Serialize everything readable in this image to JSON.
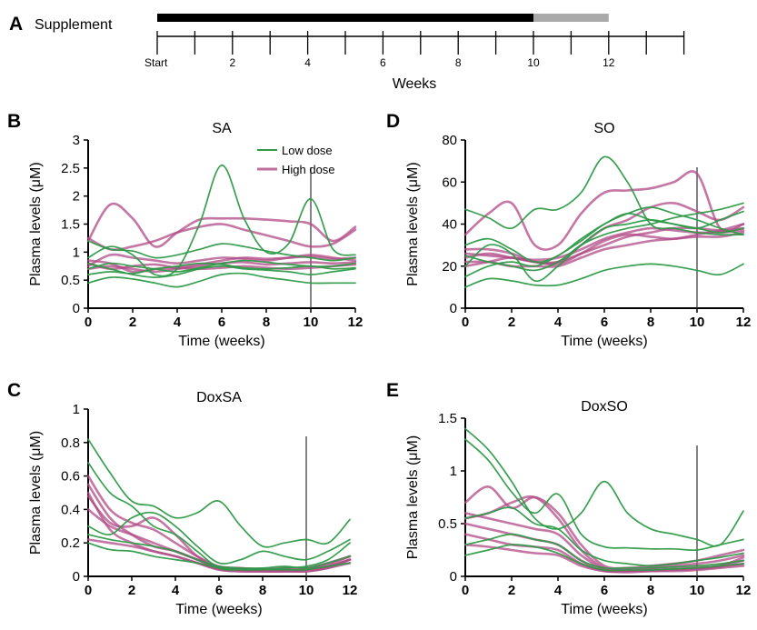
{
  "figure": {
    "colors": {
      "low_dose": "#2e9a48",
      "high_dose": "#b04a86",
      "supplement_on": "#000000",
      "supplement_off": "#aaaaaa",
      "axis": "#000000"
    },
    "timeline": {
      "letter": "A",
      "label": "Supplement",
      "on_weeks": [
        0,
        10
      ],
      "off_weeks": [
        10,
        12
      ],
      "tick_weeks": [
        0,
        1,
        2,
        3,
        4,
        5,
        6,
        7,
        8,
        9,
        10,
        11,
        12,
        13,
        14
      ],
      "tick_labels": [
        {
          "week": 0,
          "text": "Start"
        },
        {
          "week": 2,
          "text": "2"
        },
        {
          "week": 4,
          "text": "4"
        },
        {
          "week": 6,
          "text": "6"
        },
        {
          "week": 8,
          "text": "8"
        },
        {
          "week": 10,
          "text": "10"
        },
        {
          "week": 12,
          "text": "12"
        }
      ],
      "xlabel": "Weeks"
    },
    "legend": {
      "low_dose": "Low dose",
      "high_dose": "High dose"
    }
  },
  "chart_data": [
    {
      "id": "B",
      "type": "line",
      "title": "SA",
      "xlabel": "Time (weeks)",
      "ylabel": "Plasma levels (μM)",
      "xlim": [
        0,
        12
      ],
      "ylim": [
        0,
        3
      ],
      "xticks": [
        0,
        2,
        4,
        6,
        8,
        10,
        12
      ],
      "yticks": [
        0,
        0.5,
        1,
        1.5,
        2,
        2.5,
        3
      ],
      "ytick_labels": [
        "0",
        "0.5",
        "1",
        "1.5",
        "2",
        "2.5",
        "3"
      ],
      "vline": 10,
      "legend": true,
      "x": [
        0,
        1,
        2,
        3,
        4,
        5,
        6,
        7,
        8,
        9,
        10,
        11,
        12
      ],
      "low_dose": [
        [
          0.45,
          0.55,
          0.52,
          0.45,
          0.38,
          0.48,
          0.6,
          0.62,
          0.55,
          0.5,
          0.45,
          0.45,
          0.45
        ],
        [
          0.9,
          1.1,
          0.95,
          0.6,
          0.7,
          1.5,
          2.55,
          1.6,
          1.0,
          1.15,
          1.95,
          1.05,
          0.95
        ],
        [
          1.2,
          1.05,
          1.02,
          0.9,
          0.95,
          1.05,
          1.15,
          1.1,
          1.02,
          0.95,
          0.9,
          0.85,
          0.9
        ],
        [
          0.7,
          0.8,
          0.75,
          0.7,
          0.65,
          0.72,
          0.8,
          0.85,
          0.82,
          0.78,
          0.75,
          0.75,
          0.8
        ],
        [
          0.8,
          0.7,
          0.6,
          0.55,
          0.6,
          0.7,
          0.75,
          0.7,
          0.68,
          0.65,
          0.6,
          0.65,
          0.7
        ],
        [
          0.6,
          0.65,
          0.62,
          0.7,
          0.75,
          0.8,
          0.78,
          0.72,
          0.7,
          0.72,
          0.75,
          0.7,
          0.72
        ]
      ],
      "high_dose": [
        [
          1.2,
          1.85,
          1.6,
          1.1,
          1.35,
          1.58,
          1.6,
          1.6,
          1.58,
          1.55,
          1.5,
          1.2,
          1.45
        ],
        [
          1.25,
          1.05,
          1.1,
          1.2,
          1.35,
          1.45,
          1.5,
          1.4,
          1.3,
          1.2,
          1.1,
          1.15,
          1.4
        ],
        [
          0.75,
          0.95,
          0.9,
          0.85,
          0.8,
          0.85,
          0.9,
          0.88,
          0.85,
          0.9,
          0.95,
          0.9,
          0.85
        ],
        [
          0.7,
          0.75,
          0.7,
          0.65,
          0.7,
          0.75,
          0.8,
          0.82,
          0.78,
          0.8,
          0.82,
          0.8,
          0.82
        ],
        [
          0.85,
          0.8,
          0.65,
          0.7,
          0.72,
          0.78,
          0.85,
          0.9,
          0.88,
          0.9,
          0.92,
          0.88,
          0.9
        ],
        [
          0.8,
          0.7,
          0.75,
          0.78,
          0.72,
          0.7,
          0.72,
          0.75,
          0.72,
          0.7,
          0.72,
          0.75,
          0.78
        ]
      ]
    },
    {
      "id": "C",
      "type": "line",
      "title": "DoxSA",
      "xlabel": "Time (weeks)",
      "ylabel": "Plasma levels (μM)",
      "xlim": [
        0,
        12
      ],
      "ylim": [
        0,
        1
      ],
      "xticks": [
        0,
        2,
        4,
        6,
        8,
        10,
        12
      ],
      "yticks": [
        0,
        0.2,
        0.4,
        0.6,
        0.8,
        1
      ],
      "ytick_labels": [
        "0",
        "0.2",
        "0.4",
        "0.6",
        "0.8",
        "1"
      ],
      "vline": 10,
      "legend": false,
      "x": [
        0,
        1,
        2,
        3,
        4,
        5,
        6,
        7,
        8,
        9,
        10,
        11,
        12
      ],
      "low_dose": [
        [
          0.82,
          0.62,
          0.45,
          0.42,
          0.35,
          0.38,
          0.45,
          0.3,
          0.18,
          0.2,
          0.22,
          0.2,
          0.34
        ],
        [
          0.68,
          0.5,
          0.42,
          0.3,
          0.25,
          0.15,
          0.05,
          0.04,
          0.04,
          0.05,
          0.06,
          0.1,
          0.2
        ],
        [
          0.3,
          0.25,
          0.35,
          0.38,
          0.3,
          0.18,
          0.08,
          0.1,
          0.15,
          0.12,
          0.1,
          0.15,
          0.22
        ],
        [
          0.2,
          0.16,
          0.15,
          0.12,
          0.1,
          0.08,
          0.05,
          0.04,
          0.04,
          0.04,
          0.04,
          0.06,
          0.08
        ],
        [
          0.25,
          0.22,
          0.2,
          0.18,
          0.15,
          0.1,
          0.06,
          0.05,
          0.05,
          0.06,
          0.05,
          0.08,
          0.12
        ]
      ],
      "high_dose": [
        [
          0.6,
          0.4,
          0.32,
          0.28,
          0.2,
          0.12,
          0.06,
          0.05,
          0.04,
          0.04,
          0.04,
          0.06,
          0.1
        ],
        [
          0.55,
          0.35,
          0.25,
          0.18,
          0.15,
          0.1,
          0.05,
          0.04,
          0.04,
          0.05,
          0.05,
          0.08,
          0.12
        ],
        [
          0.5,
          0.28,
          0.2,
          0.15,
          0.12,
          0.08,
          0.04,
          0.03,
          0.03,
          0.03,
          0.04,
          0.06,
          0.1
        ],
        [
          0.22,
          0.2,
          0.18,
          0.15,
          0.12,
          0.08,
          0.04,
          0.03,
          0.03,
          0.03,
          0.03,
          0.05,
          0.08
        ],
        [
          0.48,
          0.32,
          0.3,
          0.35,
          0.25,
          0.12,
          0.05,
          0.04,
          0.04,
          0.04,
          0.04,
          0.07,
          0.12
        ],
        [
          0.4,
          0.3,
          0.25,
          0.2,
          0.15,
          0.1,
          0.05,
          0.04,
          0.03,
          0.03,
          0.03,
          0.05,
          0.1
        ]
      ]
    },
    {
      "id": "D",
      "type": "line",
      "title": "SO",
      "xlabel": "Time (weeks)",
      "ylabel": "Plasma levels (μM)",
      "xlim": [
        0,
        12
      ],
      "ylim": [
        0,
        80
      ],
      "xticks": [
        0,
        2,
        4,
        6,
        8,
        10,
        12
      ],
      "yticks": [
        0,
        20,
        40,
        60,
        80
      ],
      "ytick_labels": [
        "0",
        "20",
        "40",
        "60",
        "80"
      ],
      "vline": 10,
      "legend": false,
      "x": [
        0,
        1,
        2,
        3,
        4,
        5,
        6,
        7,
        8,
        9,
        10,
        11,
        12
      ],
      "low_dose": [
        [
          47,
          43,
          38,
          47,
          47,
          55,
          72,
          60,
          40,
          38,
          36,
          35,
          35
        ],
        [
          10,
          14,
          13,
          11,
          11,
          14,
          18,
          20,
          21,
          20,
          18,
          16,
          21
        ],
        [
          20,
          30,
          26,
          13,
          20,
          30,
          38,
          40,
          42,
          40,
          38,
          36,
          38
        ],
        [
          30,
          33,
          28,
          22,
          25,
          33,
          40,
          45,
          42,
          40,
          38,
          42,
          46
        ],
        [
          25,
          22,
          20,
          18,
          22,
          30,
          35,
          38,
          40,
          43,
          45,
          47,
          50
        ],
        [
          15,
          20,
          22,
          20,
          25,
          32,
          40,
          45,
          48,
          45,
          42,
          38,
          35
        ]
      ],
      "high_dose": [
        [
          35,
          45,
          50,
          30,
          30,
          45,
          55,
          56,
          57,
          60,
          64,
          38,
          40
        ],
        [
          28,
          28,
          26,
          22,
          22,
          30,
          38,
          42,
          48,
          50,
          46,
          42,
          48
        ],
        [
          24,
          26,
          24,
          22,
          22,
          26,
          30,
          34,
          36,
          38,
          38,
          37,
          38
        ],
        [
          22,
          22,
          20,
          20,
          20,
          24,
          28,
          30,
          32,
          33,
          34,
          34,
          36
        ],
        [
          26,
          25,
          24,
          23,
          24,
          28,
          33,
          36,
          38,
          37,
          36,
          36,
          37
        ],
        [
          20,
          22,
          24,
          22,
          21,
          26,
          32,
          35,
          34,
          33,
          35,
          37,
          40
        ]
      ]
    },
    {
      "id": "E",
      "type": "line",
      "title": "DoxSO",
      "xlabel": "Time (weeks)",
      "ylabel": "Plasma levels (μM)",
      "xlim": [
        0,
        12
      ],
      "ylim": [
        0,
        1.5
      ],
      "xticks": [
        0,
        2,
        4,
        6,
        8,
        10,
        12
      ],
      "yticks": [
        0,
        0.5,
        1,
        1.5
      ],
      "ytick_labels": [
        "0",
        "0.5",
        "1",
        "1.5"
      ],
      "vline": 10,
      "legend": false,
      "x": [
        0,
        1,
        2,
        3,
        4,
        5,
        6,
        7,
        8,
        9,
        10,
        11,
        12
      ],
      "low_dose": [
        [
          1.4,
          1.2,
          0.9,
          0.55,
          0.45,
          0.6,
          0.9,
          0.6,
          0.45,
          0.4,
          0.35,
          0.3,
          0.62
        ],
        [
          1.3,
          1.1,
          0.8,
          0.6,
          0.78,
          0.4,
          0.28,
          0.27,
          0.26,
          0.26,
          0.25,
          0.3,
          0.35
        ],
        [
          0.55,
          0.6,
          0.65,
          0.5,
          0.45,
          0.25,
          0.15,
          0.12,
          0.1,
          0.12,
          0.15,
          0.18,
          0.22
        ],
        [
          0.3,
          0.35,
          0.4,
          0.35,
          0.3,
          0.15,
          0.08,
          0.08,
          0.08,
          0.09,
          0.1,
          0.12,
          0.15
        ],
        [
          0.2,
          0.25,
          0.3,
          0.28,
          0.22,
          0.12,
          0.06,
          0.06,
          0.06,
          0.07,
          0.08,
          0.1,
          0.12
        ]
      ],
      "high_dose": [
        [
          0.7,
          0.85,
          0.65,
          0.75,
          0.6,
          0.3,
          0.1,
          0.08,
          0.1,
          0.12,
          0.15,
          0.2,
          0.25
        ],
        [
          0.55,
          0.6,
          0.7,
          0.75,
          0.55,
          0.25,
          0.08,
          0.06,
          0.08,
          0.1,
          0.12,
          0.15,
          0.2
        ],
        [
          0.5,
          0.45,
          0.4,
          0.35,
          0.3,
          0.15,
          0.06,
          0.05,
          0.06,
          0.07,
          0.08,
          0.1,
          0.15
        ],
        [
          0.4,
          0.35,
          0.3,
          0.28,
          0.25,
          0.12,
          0.05,
          0.05,
          0.05,
          0.06,
          0.07,
          0.09,
          0.12
        ],
        [
          0.6,
          0.55,
          0.5,
          0.45,
          0.4,
          0.2,
          0.07,
          0.06,
          0.06,
          0.07,
          0.08,
          0.1,
          0.18
        ],
        [
          0.3,
          0.28,
          0.25,
          0.22,
          0.2,
          0.1,
          0.05,
          0.04,
          0.05,
          0.05,
          0.06,
          0.08,
          0.1
        ]
      ]
    }
  ]
}
